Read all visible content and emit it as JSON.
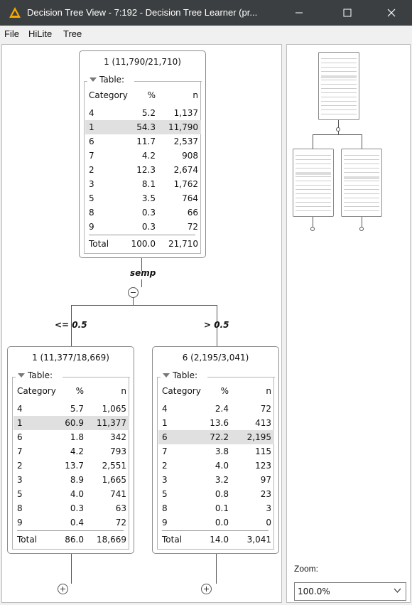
{
  "window": {
    "title": "Decision Tree View - 7:192 - Decision Tree Learner (pr..."
  },
  "menu": [
    "File",
    "HiLite",
    "Tree"
  ],
  "tree": {
    "root": {
      "title": "1 (11,790/21,710)",
      "table_label": "Table:",
      "headers": [
        "Category",
        "%",
        "n"
      ],
      "rows": [
        {
          "category": "4",
          "pct": "5.2",
          "n": "1,137",
          "highlight": false
        },
        {
          "category": "1",
          "pct": "54.3",
          "n": "11,790",
          "highlight": true
        },
        {
          "category": "6",
          "pct": "11.7",
          "n": "2,537",
          "highlight": false
        },
        {
          "category": "7",
          "pct": "4.2",
          "n": "908",
          "highlight": false
        },
        {
          "category": "2",
          "pct": "12.3",
          "n": "2,674",
          "highlight": false
        },
        {
          "category": "3",
          "pct": "8.1",
          "n": "1,762",
          "highlight": false
        },
        {
          "category": "5",
          "pct": "3.5",
          "n": "764",
          "highlight": false
        },
        {
          "category": "8",
          "pct": "0.3",
          "n": "66",
          "highlight": false
        },
        {
          "category": "9",
          "pct": "0.3",
          "n": "72",
          "highlight": false
        }
      ],
      "total": {
        "label": "Total",
        "pct": "100.0",
        "n": "21,710"
      },
      "split_attribute": "semp"
    },
    "left": {
      "condition": "<= 0.5",
      "title": "1 (11,377/18,669)",
      "table_label": "Table:",
      "headers": [
        "Category",
        "%",
        "n"
      ],
      "rows": [
        {
          "category": "4",
          "pct": "5.7",
          "n": "1,065",
          "highlight": false
        },
        {
          "category": "1",
          "pct": "60.9",
          "n": "11,377",
          "highlight": true
        },
        {
          "category": "6",
          "pct": "1.8",
          "n": "342",
          "highlight": false
        },
        {
          "category": "7",
          "pct": "4.2",
          "n": "793",
          "highlight": false
        },
        {
          "category": "2",
          "pct": "13.7",
          "n": "2,551",
          "highlight": false
        },
        {
          "category": "3",
          "pct": "8.9",
          "n": "1,665",
          "highlight": false
        },
        {
          "category": "5",
          "pct": "4.0",
          "n": "741",
          "highlight": false
        },
        {
          "category": "8",
          "pct": "0.3",
          "n": "63",
          "highlight": false
        },
        {
          "category": "9",
          "pct": "0.4",
          "n": "72",
          "highlight": false
        }
      ],
      "total": {
        "label": "Total",
        "pct": "86.0",
        "n": "18,669"
      }
    },
    "right": {
      "condition": "> 0.5",
      "title": "6 (2,195/3,041)",
      "table_label": "Table:",
      "headers": [
        "Category",
        "%",
        "n"
      ],
      "rows": [
        {
          "category": "4",
          "pct": "2.4",
          "n": "72",
          "highlight": false
        },
        {
          "category": "1",
          "pct": "13.6",
          "n": "413",
          "highlight": false
        },
        {
          "category": "6",
          "pct": "72.2",
          "n": "2,195",
          "highlight": true
        },
        {
          "category": "7",
          "pct": "3.8",
          "n": "115",
          "highlight": false
        },
        {
          "category": "2",
          "pct": "4.0",
          "n": "123",
          "highlight": false
        },
        {
          "category": "3",
          "pct": "3.2",
          "n": "97",
          "highlight": false
        },
        {
          "category": "5",
          "pct": "0.8",
          "n": "23",
          "highlight": false
        },
        {
          "category": "8",
          "pct": "0.1",
          "n": "3",
          "highlight": false
        },
        {
          "category": "9",
          "pct": "0.0",
          "n": "0",
          "highlight": false
        }
      ],
      "total": {
        "label": "Total",
        "pct": "14.0",
        "n": "3,041"
      }
    }
  },
  "zoom": {
    "label": "Zoom:",
    "value": "100.0%"
  },
  "colors": {
    "titlebar": "#3c3f41",
    "highlight_row": "#e0e0e0",
    "app_icon": "#f5a800"
  }
}
